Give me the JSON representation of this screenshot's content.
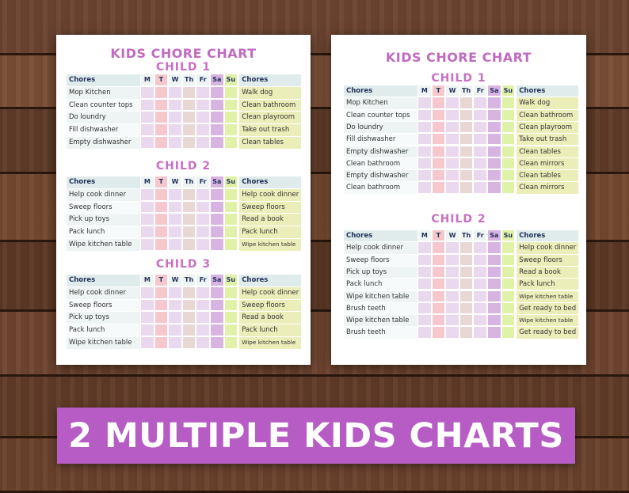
{
  "banner_text": "2 MULTIPLE KIDS CHARTS",
  "colors": {
    "title": "#c06bc0",
    "banner": "#b65cc4",
    "header_bg": "#dfeceb",
    "chore_left_alt": "#eef4f3",
    "chore_right": "#eceeb9",
    "cell_light_purple": "#e9d8ee",
    "cell_pink": "#f6c7cc",
    "cell_tan": "#e9d7d4",
    "cell_purple": "#d8b4e3",
    "cell_green": "#dff2a8"
  },
  "days": [
    "M",
    "T",
    "W",
    "Th",
    "Fr",
    "Sa",
    "Su"
  ],
  "chart_a": {
    "title": "KIDS CHORE CHART",
    "sections": [
      {
        "name": "CHILD 1",
        "header_left": "Chores",
        "header_right": "Chores",
        "left": [
          "Mop Kitchen",
          "Clean counter tops",
          "Do loundry",
          "Fill dishwasher",
          "Empty dishwasher"
        ],
        "right": [
          "Walk dog",
          "Clean bathroom",
          "Clean playroom",
          "Take out trash",
          "Clean tables"
        ]
      },
      {
        "name": "CHILD 2",
        "header_left": "Chores",
        "header_right": "Chores",
        "left": [
          "Help cook dinner",
          "Sweep floors",
          "Pick up toys",
          "Pack lunch",
          "Wipe kitchen table"
        ],
        "right": [
          "Help cook dinner",
          "Sweep floors",
          "Read a book",
          "Pack lunch",
          "Wipe kitchen table"
        ]
      },
      {
        "name": "CHILD 3",
        "header_left": "Chores",
        "header_right": "Chores",
        "left": [
          "Help cook dinner",
          "Sweep floors",
          "Pick up toys",
          "Pack lunch",
          "Wipe kitchen table"
        ],
        "right": [
          "Help cook dinner",
          "Sweep floors",
          "Read a book",
          "Pack lunch",
          "Wipe kitchen table"
        ]
      }
    ]
  },
  "chart_b": {
    "title": "KIDS CHORE CHART",
    "sections": [
      {
        "name": "CHILD 1",
        "header_left": "Chores",
        "header_right": "Chores",
        "left": [
          "Mop Kitchen",
          "Clean counter tops",
          "Do loundry",
          "Fill dishwasher",
          "Empty dishwasher",
          "Clean bathroom",
          "Empty dishwasher",
          "Clean bathroom"
        ],
        "right": [
          "Walk dog",
          "Clean bathroom",
          "Clean playroom",
          "Take out trash",
          "Clean tables",
          "Clean mirrors",
          "Clean tables",
          "Clean mirrors"
        ]
      },
      {
        "name": "CHILD 2",
        "header_left": "Chores",
        "header_right": "Chores",
        "left": [
          "Help cook dinner",
          "Sweep floors",
          "Pick up toys",
          "Pack lunch",
          "Wipe kitchen table",
          "Brush teeth",
          "Wipe kitchen table",
          "Brush teeth"
        ],
        "right": [
          "Help cook dinner",
          "Sweep floors",
          "Read a book",
          "Pack lunch",
          "Wipe kitchen table",
          "Get ready to bed",
          "Wipe kitchen table",
          "Get ready to bed"
        ]
      }
    ]
  }
}
